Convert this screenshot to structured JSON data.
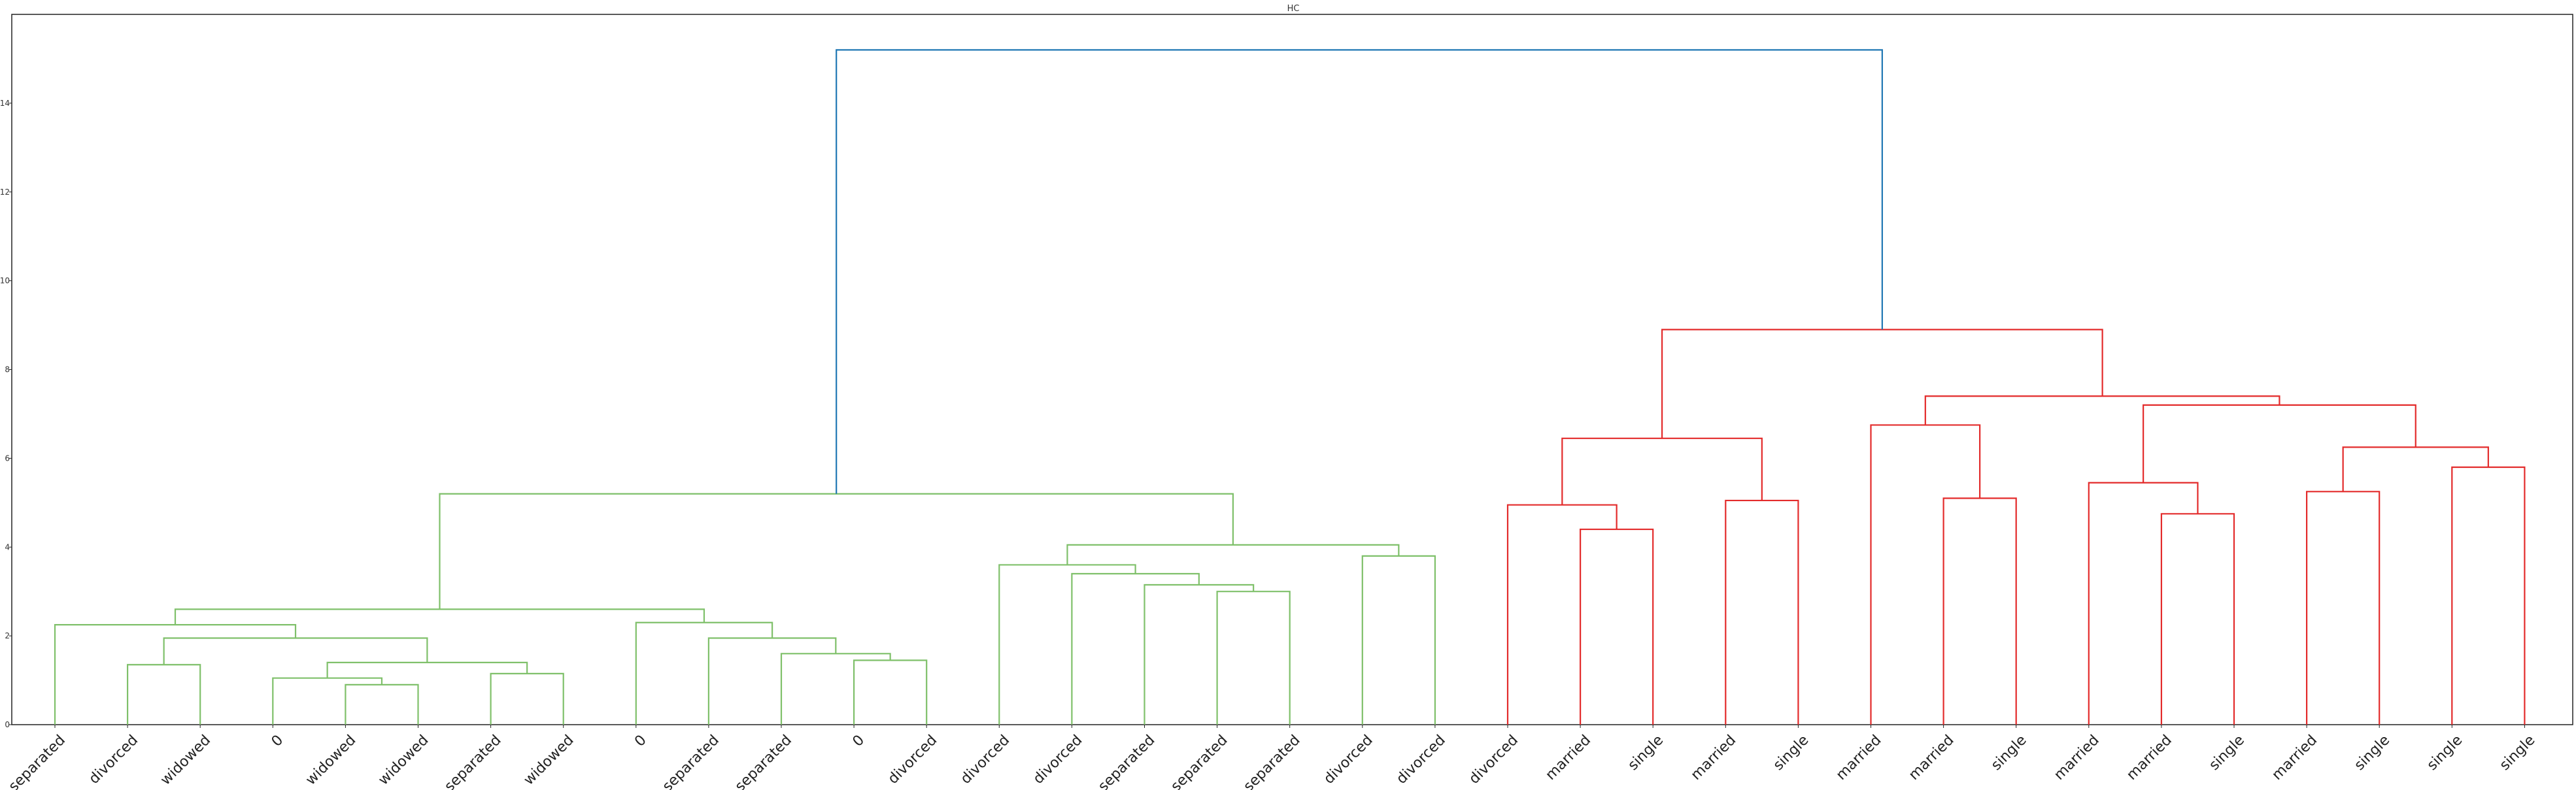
{
  "chart_data": {
    "type": "dendrogram",
    "title": "HC",
    "xlabel": "",
    "ylabel": "",
    "ylim": [
      0,
      16
    ],
    "yticks": [
      "0",
      "2",
      "4",
      "6",
      "8",
      "10",
      "12",
      "14"
    ],
    "grid": false,
    "leaves": [
      "separated",
      "divorced",
      "widowed",
      "0",
      "widowed",
      "widowed",
      "separated",
      "widowed",
      "0",
      "separated",
      "separated",
      "0",
      "divorced",
      "divorced",
      "divorced",
      "separated",
      "separated",
      "separated",
      "divorced",
      "divorced",
      "divorced",
      "married",
      "single",
      "married",
      "single",
      "married",
      "married",
      "single",
      "married",
      "married",
      "single",
      "married",
      "single",
      "single",
      "single"
    ],
    "link_colors": {
      "left_cluster": "#7fc06a",
      "right_cluster": "#e32b2b",
      "root": "#1f77b4"
    },
    "merges": [
      {
        "id": "n1",
        "a": "L4",
        "b": "L5",
        "height": 0.9,
        "cluster": "green"
      },
      {
        "id": "n2",
        "a": "L3",
        "b": "n1",
        "height": 1.05,
        "cluster": "green"
      },
      {
        "id": "n3",
        "a": "L6",
        "b": "L7",
        "height": 1.15,
        "cluster": "green"
      },
      {
        "id": "n4",
        "a": "n2",
        "b": "n3",
        "height": 1.4,
        "cluster": "green"
      },
      {
        "id": "n5",
        "a": "L1",
        "b": "L2",
        "height": 1.35,
        "cluster": "green"
      },
      {
        "id": "n6",
        "a": "n5",
        "b": "n4",
        "height": 1.95,
        "cluster": "green"
      },
      {
        "id": "n7",
        "a": "L0",
        "b": "n6",
        "height": 2.25,
        "cluster": "green"
      },
      {
        "id": "n8",
        "a": "L11",
        "b": "L12",
        "height": 1.45,
        "cluster": "green"
      },
      {
        "id": "n9",
        "a": "L10",
        "b": "n8",
        "height": 1.6,
        "cluster": "green"
      },
      {
        "id": "n10",
        "a": "L9",
        "b": "n9",
        "height": 1.95,
        "cluster": "green"
      },
      {
        "id": "n11",
        "a": "L8",
        "b": "n10",
        "height": 2.3,
        "cluster": "green"
      },
      {
        "id": "n12",
        "a": "n7",
        "b": "n11",
        "height": 2.6,
        "cluster": "green"
      },
      {
        "id": "n13",
        "a": "L16",
        "b": "L17",
        "height": 3.0,
        "cluster": "green"
      },
      {
        "id": "n14",
        "a": "L15",
        "b": "n13",
        "height": 3.15,
        "cluster": "green"
      },
      {
        "id": "n15",
        "a": "L14",
        "b": "n14",
        "height": 3.4,
        "cluster": "green"
      },
      {
        "id": "n16",
        "a": "L13",
        "b": "n15",
        "height": 3.6,
        "cluster": "green"
      },
      {
        "id": "n17",
        "a": "L18",
        "b": "L19",
        "height": 3.8,
        "cluster": "green"
      },
      {
        "id": "n18",
        "a": "n16",
        "b": "n17",
        "height": 4.05,
        "cluster": "green"
      },
      {
        "id": "n19",
        "a": "n12",
        "b": "n18",
        "height": 5.2,
        "cluster": "green"
      },
      {
        "id": "n20",
        "a": "L21",
        "b": "L22",
        "height": 4.4,
        "cluster": "red"
      },
      {
        "id": "n21",
        "a": "L20",
        "b": "n20",
        "height": 4.95,
        "cluster": "red"
      },
      {
        "id": "n22",
        "a": "L23",
        "b": "L24",
        "height": 5.05,
        "cluster": "red"
      },
      {
        "id": "n23",
        "a": "n21",
        "b": "n22",
        "height": 6.45,
        "cluster": "red"
      },
      {
        "id": "n24",
        "a": "L26",
        "b": "L27",
        "height": 5.1,
        "cluster": "red"
      },
      {
        "id": "n25",
        "a": "L25",
        "b": "n24",
        "height": 6.75,
        "cluster": "red"
      },
      {
        "id": "n26",
        "a": "L29",
        "b": "L30",
        "height": 4.75,
        "cluster": "red"
      },
      {
        "id": "n27",
        "a": "L28",
        "b": "n26",
        "height": 5.45,
        "cluster": "red"
      },
      {
        "id": "n28",
        "a": "L31",
        "b": "L32",
        "height": 5.25,
        "cluster": "red"
      },
      {
        "id": "n29",
        "a": "L33",
        "b": "L34",
        "height": 5.8,
        "cluster": "red"
      },
      {
        "id": "n30",
        "a": "n28",
        "b": "n29",
        "height": 6.25,
        "cluster": "red"
      },
      {
        "id": "n31",
        "a": "n27",
        "b": "n30",
        "height": 7.2,
        "cluster": "red"
      },
      {
        "id": "n32",
        "a": "n25",
        "b": "n31",
        "height": 7.4,
        "cluster": "red"
      },
      {
        "id": "n33",
        "a": "n23",
        "b": "n32",
        "height": 8.9,
        "cluster": "red"
      },
      {
        "id": "n34",
        "a": "n19",
        "b": "n33",
        "height": 15.2,
        "cluster": "root"
      }
    ]
  }
}
